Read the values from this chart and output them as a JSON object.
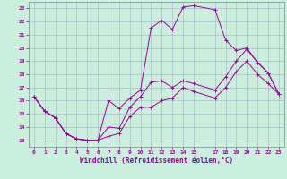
{
  "xlabel": "Windchill (Refroidissement éolien,°C)",
  "background_color": "#cceedd",
  "line_color": "#990099",
  "grid_color": "#aabbcc",
  "xlim": [
    -0.5,
    23.5
  ],
  "ylim": [
    12.5,
    23.5
  ],
  "xticks": [
    0,
    1,
    2,
    3,
    4,
    5,
    6,
    7,
    8,
    9,
    10,
    11,
    12,
    13,
    14,
    15,
    17,
    18,
    19,
    20,
    21,
    22,
    23
  ],
  "yticks": [
    13,
    14,
    15,
    16,
    17,
    18,
    19,
    20,
    21,
    22,
    23
  ],
  "curve1_x": [
    0,
    1,
    2,
    3,
    4,
    5,
    6,
    7,
    8,
    9,
    10,
    11,
    12,
    13,
    14,
    15,
    17,
    18,
    19,
    20,
    21,
    22,
    23
  ],
  "curve1_y": [
    16.3,
    15.2,
    14.7,
    13.5,
    13.1,
    13.0,
    13.0,
    16.0,
    15.4,
    16.2,
    16.8,
    21.5,
    22.1,
    21.4,
    23.1,
    23.2,
    22.9,
    20.6,
    19.8,
    20.0,
    18.9,
    18.1,
    16.5
  ],
  "curve2_x": [
    0,
    1,
    2,
    3,
    4,
    5,
    6,
    7,
    8,
    9,
    10,
    11,
    12,
    13,
    14,
    15,
    17,
    18,
    19,
    20,
    21,
    22,
    23
  ],
  "curve2_y": [
    16.3,
    15.2,
    14.7,
    13.5,
    13.1,
    13.0,
    13.0,
    14.0,
    13.9,
    15.5,
    16.3,
    17.4,
    17.5,
    17.0,
    17.5,
    17.3,
    16.8,
    17.8,
    19.0,
    19.9,
    18.9,
    18.1,
    16.5
  ],
  "curve3_x": [
    0,
    1,
    2,
    3,
    4,
    5,
    6,
    7,
    8,
    9,
    10,
    11,
    12,
    13,
    14,
    15,
    17,
    18,
    19,
    20,
    21,
    22,
    23
  ],
  "curve3_y": [
    16.3,
    15.2,
    14.7,
    13.5,
    13.1,
    13.0,
    13.0,
    13.3,
    13.5,
    14.8,
    15.5,
    15.5,
    16.0,
    16.2,
    17.0,
    16.7,
    16.2,
    17.0,
    18.2,
    19.0,
    18.0,
    17.3,
    16.5
  ]
}
